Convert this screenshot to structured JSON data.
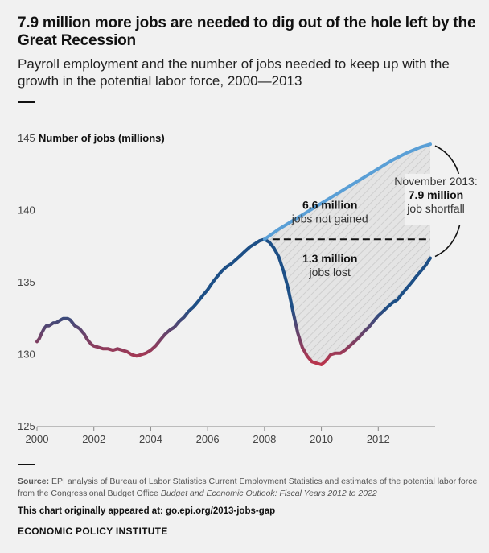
{
  "title": "7.9 million more jobs are needed to dig out of the hole left by the Great Recession",
  "subtitle": "Payroll employment and the number of jobs needed to keep up with the growth in the potential labor force, 2000—2013",
  "source": {
    "label": "Source:",
    "text": "EPI analysis of Bureau of Labor Statistics Current Employment Statistics and estimates of the potential labor force from the Congressional Budget Office",
    "publication": "Budget and Economic Outlook: Fiscal Years 2012 to 2022"
  },
  "appeared": "This chart originally appeared at: go.epi.org/2013-jobs-gap",
  "organization": "ECONOMIC POLICY INSTITUTE",
  "chart_data": {
    "type": "line",
    "ylabel": "Number of jobs (millions)",
    "xlim": [
      2000,
      2014
    ],
    "ylim": [
      125,
      145
    ],
    "yticks": [
      125,
      130,
      135,
      140,
      145
    ],
    "xticks": [
      2000,
      2002,
      2004,
      2006,
      2008,
      2010,
      2012
    ],
    "grid": false,
    "colors": {
      "payroll_low": "#c0344a",
      "payroll_high": "#1d4f86",
      "potential": "#5a9fd6",
      "shade": "#dcdcdc",
      "dashed": "#111111",
      "axis": "#888888"
    },
    "series": [
      {
        "key": "payroll",
        "x": [
          2000.0,
          2000.08,
          2000.17,
          2000.25,
          2000.33,
          2000.42,
          2000.5,
          2000.58,
          2000.67,
          2000.75,
          2000.83,
          2000.92,
          2001.0,
          2001.08,
          2001.17,
          2001.25,
          2001.33,
          2001.42,
          2001.5,
          2001.58,
          2001.67,
          2001.75,
          2001.83,
          2001.92,
          2002.0,
          2002.17,
          2002.33,
          2002.5,
          2002.67,
          2002.83,
          2003.0,
          2003.17,
          2003.33,
          2003.5,
          2003.67,
          2003.83,
          2004.0,
          2004.17,
          2004.33,
          2004.5,
          2004.67,
          2004.83,
          2005.0,
          2005.17,
          2005.33,
          2005.5,
          2005.67,
          2005.83,
          2006.0,
          2006.17,
          2006.33,
          2006.5,
          2006.67,
          2006.83,
          2007.0,
          2007.17,
          2007.33,
          2007.5,
          2007.67,
          2007.83,
          2008.0,
          2008.17,
          2008.33,
          2008.5,
          2008.67,
          2008.83,
          2009.0,
          2009.17,
          2009.33,
          2009.5,
          2009.67,
          2009.83,
          2010.0,
          2010.17,
          2010.33,
          2010.5,
          2010.67,
          2010.83,
          2011.0,
          2011.17,
          2011.33,
          2011.5,
          2011.67,
          2011.83,
          2012.0,
          2012.17,
          2012.33,
          2012.5,
          2012.67,
          2012.83,
          2013.0,
          2013.17,
          2013.33,
          2013.5,
          2013.67,
          2013.83
        ],
        "values": [
          130.9,
          131.1,
          131.5,
          131.8,
          132.0,
          132.0,
          132.1,
          132.2,
          132.2,
          132.3,
          132.4,
          132.5,
          132.5,
          132.5,
          132.4,
          132.2,
          132.0,
          131.9,
          131.8,
          131.6,
          131.4,
          131.1,
          130.9,
          130.7,
          130.6,
          130.5,
          130.4,
          130.4,
          130.3,
          130.4,
          130.3,
          130.2,
          130.0,
          129.9,
          130.0,
          130.1,
          130.3,
          130.6,
          131.0,
          131.4,
          131.7,
          131.9,
          132.3,
          132.6,
          133.0,
          133.3,
          133.7,
          134.1,
          134.5,
          135.0,
          135.4,
          135.8,
          136.1,
          136.3,
          136.6,
          136.9,
          137.2,
          137.5,
          137.7,
          137.9,
          138.0,
          137.8,
          137.4,
          136.8,
          135.8,
          134.6,
          133.0,
          131.5,
          130.5,
          129.9,
          129.5,
          129.4,
          129.3,
          129.6,
          130.0,
          130.1,
          130.1,
          130.3,
          130.6,
          130.9,
          131.2,
          131.6,
          131.9,
          132.3,
          132.7,
          133.0,
          133.3,
          133.6,
          133.8,
          134.2,
          134.6,
          135.0,
          135.4,
          135.8,
          136.2,
          136.7
        ]
      },
      {
        "key": "potential",
        "x": [
          2008.0,
          2008.5,
          2009.0,
          2009.5,
          2010.0,
          2010.5,
          2011.0,
          2011.5,
          2012.0,
          2012.5,
          2013.0,
          2013.5,
          2013.83
        ],
        "values": [
          138.0,
          138.7,
          139.3,
          139.9,
          140.5,
          141.1,
          141.7,
          142.3,
          142.9,
          143.5,
          144.0,
          144.4,
          144.6
        ]
      }
    ],
    "prerecession_peak": 138.0,
    "annotations": [
      {
        "key": "not_gained",
        "value": "6.6 million",
        "label": "jobs not gained",
        "x": 2010.3,
        "y": 140.1
      },
      {
        "key": "lost",
        "value": "1.3 million",
        "label": "jobs lost",
        "x": 2010.3,
        "y": 136.4
      },
      {
        "key": "shortfall",
        "date": "November 2013:",
        "value": "7.9 million",
        "label": "job shortfall"
      }
    ]
  }
}
